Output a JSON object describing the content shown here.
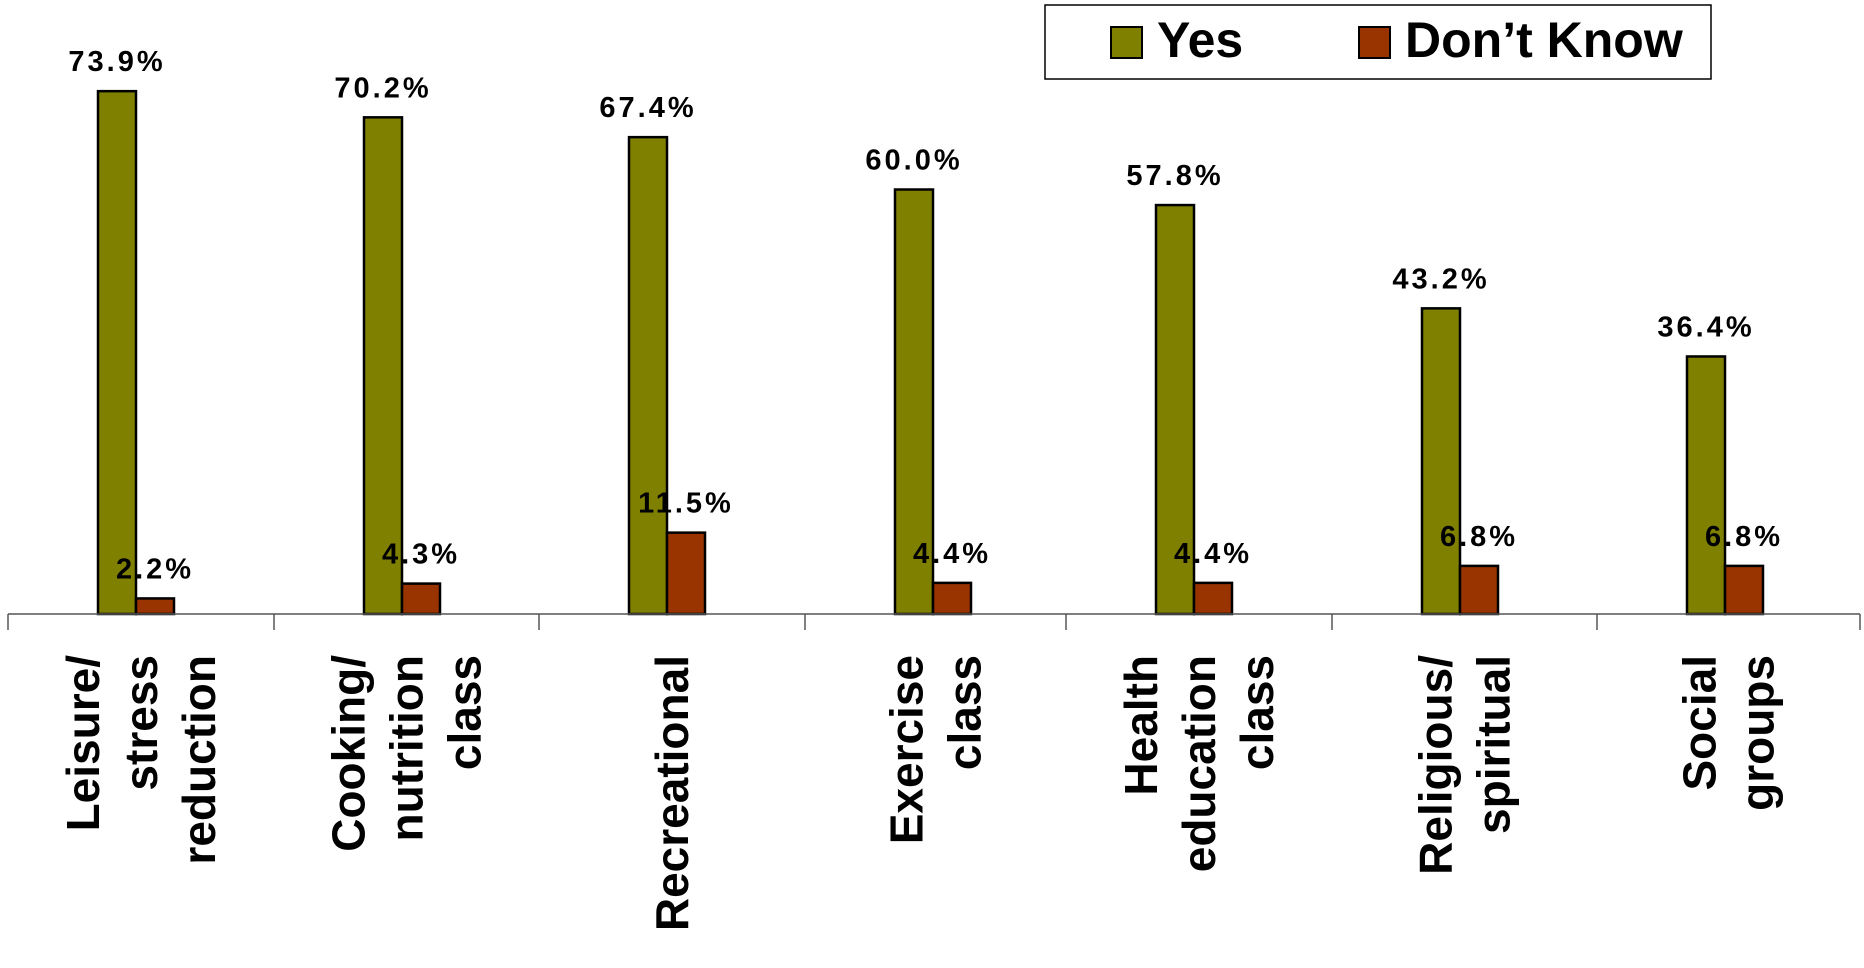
{
  "chart_data": {
    "type": "bar",
    "categories": [
      "Leisure/ stress reduction",
      "Cooking/ nutrition class",
      "Recreational",
      "Exercise class",
      "Health education class",
      "Religious/ spiritual",
      "Social groups"
    ],
    "category_lines": [
      [
        "Leisure/",
        "stress",
        "reduction"
      ],
      [
        "Cooking/",
        "nutrition",
        "class"
      ],
      [
        "Recreational"
      ],
      [
        "Exercise",
        "class"
      ],
      [
        "Health",
        "education",
        "class"
      ],
      [
        "Religious/",
        "spiritual"
      ],
      [
        "Social",
        "groups"
      ]
    ],
    "series": [
      {
        "name": "Yes",
        "color": "#808000",
        "values": [
          73.9,
          70.2,
          67.4,
          60.0,
          57.8,
          43.2,
          36.4
        ],
        "labels": [
          "73.9%",
          "70.2%",
          "67.4%",
          "60.0%",
          "57.8%",
          "43.2%",
          "36.4%"
        ]
      },
      {
        "name": "Don’t Know",
        "color": "#993300",
        "values": [
          2.2,
          4.3,
          11.5,
          4.4,
          4.4,
          6.8,
          6.8
        ],
        "labels": [
          "2.2%",
          "4.3%",
          "11.5%",
          "4.4%",
          "4.4%",
          "6.8%",
          "6.8%"
        ]
      }
    ],
    "ylim": [
      0,
      100
    ],
    "legend_position": "top-right",
    "grid": false
  }
}
